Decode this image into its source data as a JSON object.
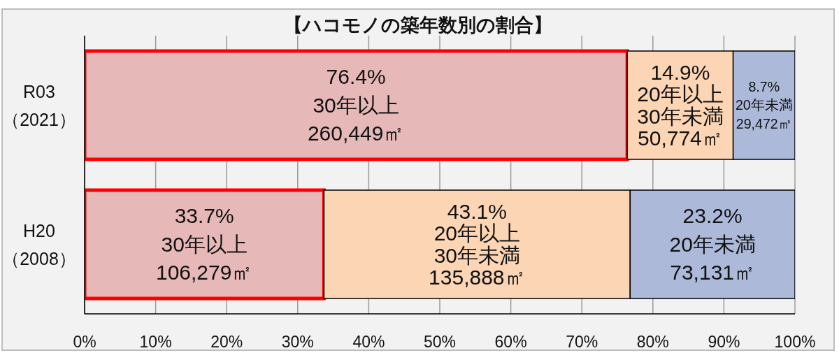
{
  "chart_data": {
    "type": "bar",
    "title": "【ハコモノの築年数別の割合】",
    "orientation": "horizontal",
    "stacked": true,
    "categories": [
      "R03\n（2021）",
      "H20\n（2008）"
    ],
    "series": [
      {
        "color": "#e6b8b7",
        "values": [
          76.4,
          33.7
        ],
        "value_labels": [
          "76.4%\n30年以上\n260,449㎡",
          "33.7%\n30年以上\n106,279㎡"
        ]
      },
      {
        "color": "#fcd5b4",
        "values": [
          14.9,
          43.1
        ],
        "value_labels": [
          "14.9%\n20年以上\n30年未満\n50,774㎡",
          "43.1%\n20年以上\n30年未満\n135,888㎡"
        ]
      },
      {
        "color": "#adb9d9",
        "values": [
          8.7,
          23.2
        ],
        "value_labels": [
          "8.7%\n20年未満\n29,472㎡",
          "23.2%\n20年未満\n73,131㎡"
        ]
      }
    ],
    "xlim": [
      0,
      100
    ],
    "xticks": [
      {
        "value": 0,
        "label": "0%"
      },
      {
        "value": 10,
        "label": "10%"
      },
      {
        "value": 20,
        "label": "20%"
      },
      {
        "value": 30,
        "label": "30%"
      },
      {
        "value": 40,
        "label": "40%"
      },
      {
        "value": 50,
        "label": "50%"
      },
      {
        "value": 60,
        "label": "60%"
      },
      {
        "value": 70,
        "label": "70%"
      },
      {
        "value": 80,
        "label": "80%"
      },
      {
        "value": 90,
        "label": "90%"
      },
      {
        "value": 100,
        "label": "100%"
      }
    ],
    "grid": "x"
  }
}
